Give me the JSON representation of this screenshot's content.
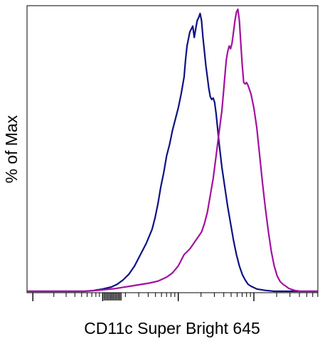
{
  "chart_data": {
    "type": "line",
    "title": "",
    "xlabel": "CD11c Super Bright 645",
    "ylabel": "% of Max",
    "xscale": "log",
    "xlim": [
      0.0,
      1.0
    ],
    "ylim": [
      0,
      100
    ],
    "grid": false,
    "legend": "none",
    "series": [
      {
        "color": "#0d1282",
        "points": [
          [
            0.0,
            0.0
          ],
          [
            0.2,
            0.0
          ],
          [
            0.23,
            0.3
          ],
          [
            0.26,
            0.8
          ],
          [
            0.29,
            1.5
          ],
          [
            0.31,
            2.5
          ],
          [
            0.33,
            4.0
          ],
          [
            0.35,
            6.0
          ],
          [
            0.37,
            9.0
          ],
          [
            0.39,
            13.0
          ],
          [
            0.41,
            17.0
          ],
          [
            0.43,
            22.0
          ],
          [
            0.44,
            26.0
          ],
          [
            0.45,
            31.0
          ],
          [
            0.46,
            37.0
          ],
          [
            0.47,
            42.0
          ],
          [
            0.48,
            48.0
          ],
          [
            0.49,
            52.0
          ],
          [
            0.5,
            57.0
          ],
          [
            0.51,
            61.0
          ],
          [
            0.52,
            65.0
          ],
          [
            0.53,
            70.0
          ],
          [
            0.54,
            76.0
          ],
          [
            0.545,
            82.0
          ],
          [
            0.55,
            87.0
          ],
          [
            0.56,
            92.0
          ],
          [
            0.57,
            94.0
          ],
          [
            0.575,
            90.0
          ],
          [
            0.58,
            93.0
          ],
          [
            0.585,
            96.0
          ],
          [
            0.59,
            97.0
          ],
          [
            0.595,
            98.5
          ],
          [
            0.6,
            96.0
          ],
          [
            0.605,
            90.0
          ],
          [
            0.61,
            85.0
          ],
          [
            0.615,
            80.0
          ],
          [
            0.62,
            76.0
          ],
          [
            0.625,
            72.0
          ],
          [
            0.63,
            69.0
          ],
          [
            0.635,
            68.0
          ],
          [
            0.64,
            68.5
          ],
          [
            0.645,
            67.0
          ],
          [
            0.65,
            63.0
          ],
          [
            0.655,
            58.0
          ],
          [
            0.66,
            53.0
          ],
          [
            0.67,
            44.0
          ],
          [
            0.68,
            37.0
          ],
          [
            0.69,
            30.0
          ],
          [
            0.7,
            24.0
          ],
          [
            0.71,
            18.0
          ],
          [
            0.72,
            13.0
          ],
          [
            0.73,
            9.0
          ],
          [
            0.74,
            6.0
          ],
          [
            0.75,
            4.0
          ],
          [
            0.76,
            2.5
          ],
          [
            0.77,
            1.8
          ],
          [
            0.79,
            0.8
          ],
          [
            0.82,
            0.3
          ],
          [
            0.85,
            0.0
          ],
          [
            1.0,
            0.0
          ]
        ]
      },
      {
        "color": "#a40fa0",
        "points": [
          [
            0.0,
            0.0
          ],
          [
            0.2,
            0.0
          ],
          [
            0.24,
            0.3
          ],
          [
            0.27,
            0.6
          ],
          [
            0.3,
            0.9
          ],
          [
            0.33,
            1.4
          ],
          [
            0.36,
            1.9
          ],
          [
            0.39,
            2.4
          ],
          [
            0.42,
            2.9
          ],
          [
            0.45,
            3.6
          ],
          [
            0.48,
            5.0
          ],
          [
            0.5,
            6.5
          ],
          [
            0.52,
            9.0
          ],
          [
            0.54,
            13.0
          ],
          [
            0.56,
            15.0
          ],
          [
            0.58,
            18.0
          ],
          [
            0.6,
            21.0
          ],
          [
            0.61,
            24.0
          ],
          [
            0.62,
            28.0
          ],
          [
            0.63,
            34.0
          ],
          [
            0.64,
            40.0
          ],
          [
            0.65,
            48.0
          ],
          [
            0.66,
            56.0
          ],
          [
            0.67,
            64.0
          ],
          [
            0.675,
            70.0
          ],
          [
            0.68,
            76.0
          ],
          [
            0.685,
            82.0
          ],
          [
            0.69,
            85.0
          ],
          [
            0.695,
            87.0
          ],
          [
            0.7,
            86.0
          ],
          [
            0.705,
            88.0
          ],
          [
            0.71,
            92.0
          ],
          [
            0.715,
            96.0
          ],
          [
            0.72,
            99.0
          ],
          [
            0.725,
            100.0
          ],
          [
            0.73,
            96.0
          ],
          [
            0.735,
            88.0
          ],
          [
            0.74,
            80.0
          ],
          [
            0.745,
            74.0
          ],
          [
            0.75,
            73.5
          ],
          [
            0.755,
            74.0
          ],
          [
            0.76,
            73.0
          ],
          [
            0.77,
            70.0
          ],
          [
            0.78,
            65.0
          ],
          [
            0.79,
            58.0
          ],
          [
            0.8,
            48.0
          ],
          [
            0.81,
            38.0
          ],
          [
            0.82,
            29.0
          ],
          [
            0.83,
            21.0
          ],
          [
            0.84,
            14.0
          ],
          [
            0.85,
            9.0
          ],
          [
            0.86,
            5.5
          ],
          [
            0.87,
            3.5
          ],
          [
            0.88,
            2.5
          ],
          [
            0.89,
            1.8
          ],
          [
            0.9,
            1.0
          ],
          [
            0.92,
            0.3
          ],
          [
            0.94,
            0.0
          ],
          [
            1.0,
            0.0
          ]
        ]
      }
    ]
  }
}
